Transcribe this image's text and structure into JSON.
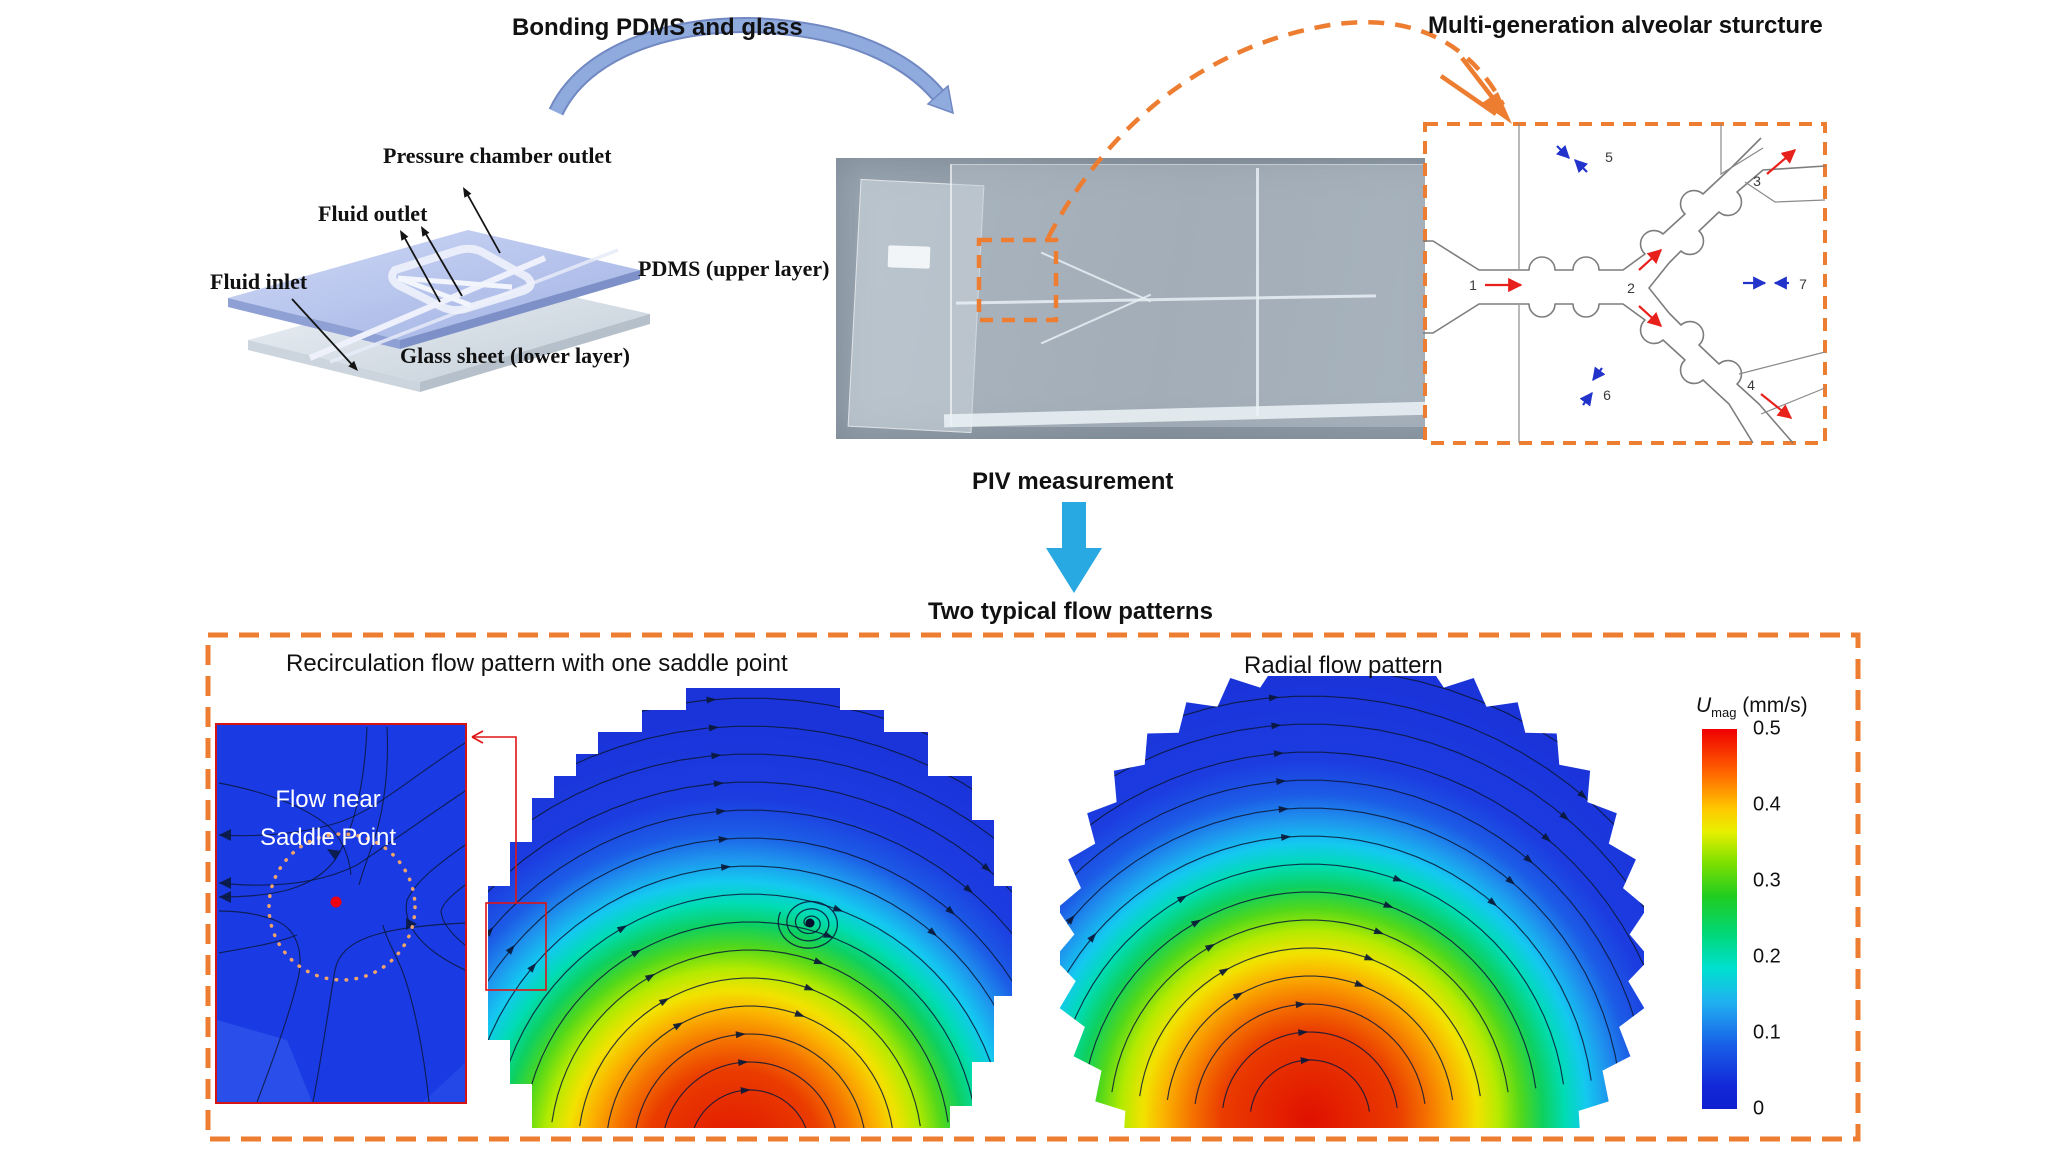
{
  "titles": {
    "bonding": "Bonding PDMS and glass",
    "alveolar": "Multi-generation alveolar sturcture",
    "piv": "PIV measurement",
    "flow_patterns": "Two typical flow patterns"
  },
  "schematic": {
    "pressure_chamber_outlet": "Pressure chamber outlet",
    "fluid_outlet": "Fluid outlet",
    "fluid_inlet": "Fluid inlet",
    "pdms_upper": "PDMS (upper layer)",
    "glass_lower": "Glass sheet (lower layer)"
  },
  "alveolar_diagram": {
    "numbers": [
      "1",
      "2",
      "3",
      "4",
      "5",
      "6",
      "7"
    ]
  },
  "panels": {
    "left_title": "Recirculation flow pattern with one saddle point",
    "right_title": "Radial flow pattern",
    "inset_line1": "Flow near",
    "inset_line2": "Saddle Point"
  },
  "colorbar": {
    "symbol": "U",
    "subscript": "mag",
    "units": " (mm/s)",
    "ticks": [
      "0.5",
      "0.4",
      "0.3",
      "0.2",
      "0.1",
      "0"
    ],
    "min": 0,
    "max": 0.5
  },
  "colors": {
    "accent_orange": "#ED7D31",
    "piv_arrow_blue": "#29A9E1",
    "bonding_arrow_blue": "#8FAADC",
    "flow_field_blue": "#1C3AE0",
    "hotspot_red": "#E81400",
    "inset_border_red": "#E01414",
    "flow_arrow_red": "#E8201C",
    "flow_arrow_blue": "#2233CC"
  }
}
